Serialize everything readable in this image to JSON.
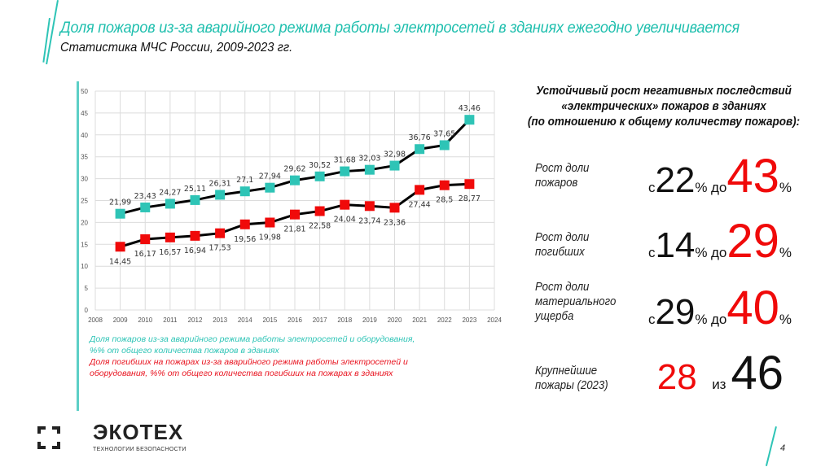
{
  "header": {
    "title": "Доля пожаров из-за аварийного режима работы электросетей в зданиях ежегодно увеличивается",
    "subtitle": "Статистика МЧС России, 2009-2023 гг."
  },
  "colors": {
    "accent": "#2ec4b6",
    "red": "#f00a0a",
    "line": "#000000"
  },
  "chart_data": {
    "type": "line",
    "title": "",
    "xlabel": "",
    "ylabel": "",
    "x_ticks": [
      "2008",
      "2009",
      "2010",
      "2011",
      "2012",
      "2013",
      "2014",
      "2015",
      "2016",
      "2017",
      "2018",
      "2019",
      "2020",
      "2021",
      "2022",
      "2023",
      "2024"
    ],
    "y_ticks": [
      "0",
      "5",
      "10",
      "15",
      "20",
      "25",
      "30",
      "35",
      "40",
      "45",
      "50"
    ],
    "xlim": [
      2008,
      2024
    ],
    "ylim": [
      0,
      50
    ],
    "grid": true,
    "x": [
      2009,
      2010,
      2011,
      2012,
      2013,
      2014,
      2015,
      2016,
      2017,
      2018,
      2019,
      2020,
      2021,
      2022,
      2023
    ],
    "series": [
      {
        "name": "Доля пожаров из-за аварийного режима работы электросетей и оборудования, %% от общего количества пожаров в зданиях",
        "color": "#2ec4b6",
        "values": [
          21.99,
          23.43,
          24.27,
          25.11,
          26.31,
          27.1,
          27.94,
          29.62,
          30.52,
          31.68,
          32.03,
          32.98,
          36.76,
          37.65,
          43.46
        ],
        "labels": [
          "21,99",
          "23,43",
          "24,27",
          "25,11",
          "26,31",
          "27,1",
          "27,94",
          "29,62",
          "30,52",
          "31,68",
          "32,03",
          "32,98",
          "36,76",
          "37,65",
          "43,46"
        ],
        "label_position": "above"
      },
      {
        "name": "Доля погибших на пожарах из-за аварийного режима работы электросетей и оборудования, %% от общего количества погибших на пожарах в зданиях",
        "color": "#f00a0a",
        "values": [
          14.45,
          16.17,
          16.57,
          16.94,
          17.53,
          19.56,
          19.98,
          21.81,
          22.58,
          24.04,
          23.74,
          23.36,
          27.44,
          28.5,
          28.77
        ],
        "labels": [
          "14,45",
          "16,17",
          "16,57",
          "16,94",
          "17,53",
          "19,56",
          "19,98",
          "21,81",
          "22,58",
          "24,04",
          "23,74",
          "23,36",
          "27,44",
          "28,5",
          "28,77"
        ],
        "label_position": "below"
      }
    ],
    "legend": {
      "placement": "bottom",
      "items": [
        {
          "text_line1": "Доля пожаров из-за аварийного режима работы электросетей и оборудования,",
          "text_line2": "%% от общего количества пожаров в зданиях",
          "color": "#2ec4b6"
        },
        {
          "text_line1": "Доля погибших на пожарах из-за аварийного режима работы электросетей и",
          "text_line2": "оборудования, %% от общего количества погибших на пожарах в зданиях",
          "color": "#f00a0a"
        }
      ]
    }
  },
  "summary": {
    "heading_line1": "Устойчивый рост негативных последствий",
    "heading_line2": "«электрических» пожаров в зданиях",
    "heading_line3": "(по отношению к общему количеству пожаров):",
    "stats": [
      {
        "label_line1": "Рост доли",
        "label_line2": "пожаров",
        "label_line3": "",
        "from_prefix": "с",
        "from": "22",
        "unit": "%",
        "to_prefix": "до",
        "to": "43"
      },
      {
        "label_line1": "Рост доли",
        "label_line2": "погибших",
        "label_line3": "",
        "from_prefix": "с",
        "from": "14",
        "unit": "%",
        "to_prefix": "до",
        "to": "29"
      },
      {
        "label_line1": "Рост доли",
        "label_line2": "материального",
        "label_line3": "ущерба",
        "from_prefix": "с",
        "from": "29",
        "unit": "%",
        "to_prefix": "до",
        "to": "40"
      }
    ],
    "largest": {
      "label_line1": "Крупнейшие",
      "label_line2": "пожары (2023)",
      "value": "28",
      "joiner": "из",
      "total": "46"
    }
  },
  "footer": {
    "logo_text": "ЭКОТЕХ",
    "logo_tagline": "ТЕХНОЛОГИИ БЕЗОПАСНОСТИ",
    "page_number": "4"
  }
}
